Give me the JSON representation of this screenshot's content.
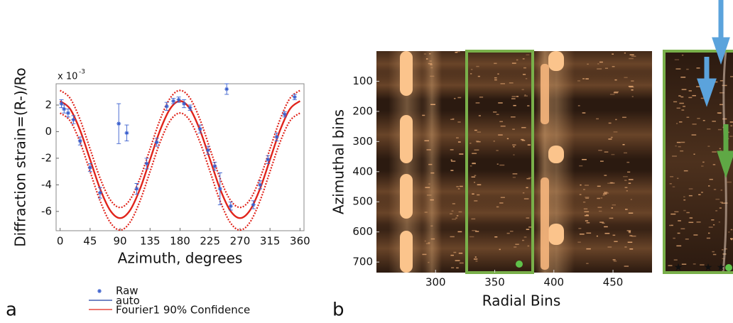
{
  "chart_data": [
    {
      "type": "scatter",
      "panel_label": "a",
      "y_label": "Diffraction strain=(R-)/Ro",
      "x_label": "Azimuth, degrees",
      "y_multiplier": "x 10",
      "y_exponent": "-3",
      "xlim": [
        -6,
        366
      ],
      "xticks": [
        0,
        45,
        90,
        135,
        180,
        225,
        270,
        315,
        360
      ],
      "ylim": [
        -7.45,
        3.6
      ],
      "yticks": [
        -6,
        -4,
        -2,
        0,
        2
      ],
      "raw": {
        "name": "Raw",
        "color": "#3a5fcd",
        "x": [
          2,
          6,
          12,
          20,
          30,
          45,
          60,
          88,
          100,
          115,
          130,
          145,
          160,
          170,
          178,
          186,
          195,
          210,
          222,
          232,
          240,
          250,
          256,
          290,
          300,
          312,
          325,
          337,
          352
        ],
        "values": [
          2.1,
          1.7,
          1.4,
          0.9,
          -0.7,
          -2.7,
          -4.6,
          0.6,
          -0.1,
          -4.3,
          -2.4,
          -0.8,
          1.9,
          2.3,
          2.4,
          2.1,
          1.8,
          0.2,
          -1.4,
          -2.6,
          -4.3,
          3.2,
          -5.6,
          -5.5,
          -4.0,
          -2.1,
          -0.4,
          1.3,
          2.6
        ],
        "errors": [
          0.3,
          0.3,
          0.3,
          0.3,
          0.3,
          0.3,
          0.4,
          1.5,
          0.6,
          0.4,
          0.4,
          0.3,
          0.3,
          0.2,
          0.2,
          0.3,
          0.2,
          0.3,
          0.3,
          0.3,
          1.2,
          0.4,
          0.3,
          0.3,
          0.3,
          0.3,
          0.3,
          0.2,
          0.2
        ]
      },
      "auto": {
        "name": "auto",
        "color": "#1f3fa0"
      },
      "fit": {
        "name": "Fourier1 90% Confidence",
        "color": "#e0241b",
        "x": [
          0,
          15,
          30,
          45,
          60,
          75,
          90,
          105,
          120,
          135,
          150,
          165,
          180,
          195,
          210,
          225,
          240,
          255,
          270,
          285,
          300,
          315,
          330,
          345,
          360
        ],
        "values": [
          2.3,
          1.71,
          0.1,
          -2.1,
          -4.3,
          -5.91,
          -6.5,
          -5.91,
          -4.3,
          -2.1,
          0.1,
          1.71,
          2.3,
          1.71,
          0.1,
          -2.1,
          -4.3,
          -5.91,
          -6.5,
          -5.91,
          -4.3,
          -2.1,
          0.1,
          1.71,
          2.3
        ],
        "upper": [
          3.1,
          2.51,
          0.9,
          -1.3,
          -3.5,
          -5.11,
          -5.7,
          -5.11,
          -3.5,
          -1.3,
          0.9,
          2.51,
          3.1,
          2.51,
          0.9,
          -1.3,
          -3.5,
          -5.11,
          -5.7,
          -5.11,
          -3.5,
          -1.3,
          0.9,
          2.51,
          3.1
        ],
        "lower": [
          1.4,
          0.81,
          -0.8,
          -3.0,
          -5.2,
          -6.81,
          -7.4,
          -6.81,
          -5.2,
          -3.0,
          -0.8,
          0.81,
          1.4,
          0.81,
          -0.8,
          -3.0,
          -5.2,
          -6.81,
          -7.4,
          -6.81,
          -5.2,
          -3.0,
          -0.8,
          0.81,
          1.4
        ]
      }
    },
    {
      "type": "heatmap",
      "panel_label": "b",
      "y_label": "Azimuthal bins",
      "x_label": "Radial Bins",
      "xlim": [
        250,
        483
      ],
      "xticks": [
        300,
        350,
        400,
        450
      ],
      "ylim": [
        0,
        735
      ],
      "yticks": [
        100,
        200,
        300,
        400,
        500,
        600,
        700
      ]
    }
  ]
}
